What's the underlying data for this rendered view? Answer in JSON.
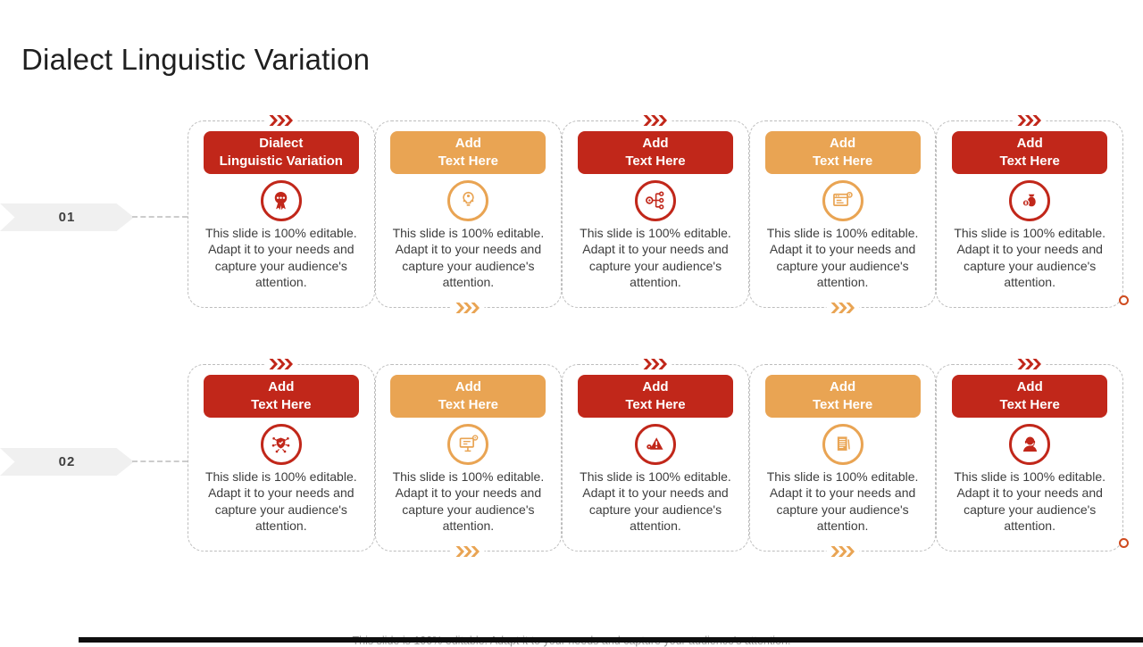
{
  "page": {
    "title": "Dialect Linguistic Variation",
    "footer": "This slide is 100% editable. Adapt it to your needs and capture your audience's attention."
  },
  "colors": {
    "red": "#c1271a",
    "orange": "#e9a453",
    "arrow_bg": "#f0f0f0",
    "end_dot": "#cf4a1e"
  },
  "card_body": "This slide is 100% editable. Adapt it to your needs and capture your audience's attention.",
  "rows": [
    {
      "label": "01",
      "cards": [
        {
          "header_line1": "Dialect",
          "header_line2": "Linguistic Variation",
          "color": "red",
          "icon": "award-ribbon-icon"
        },
        {
          "header_line1": "Add",
          "header_line2": "Text Here",
          "color": "orange",
          "icon": "idea-bulb-icon"
        },
        {
          "header_line1": "Add",
          "header_line2": "Text Here",
          "color": "red",
          "icon": "hierarchy-icon"
        },
        {
          "header_line1": "Add",
          "header_line2": "Text Here",
          "color": "orange",
          "icon": "webpage-gear-icon"
        },
        {
          "header_line1": "Add",
          "header_line2": "Text Here",
          "color": "red",
          "icon": "finance-person-icon"
        }
      ]
    },
    {
      "label": "02",
      "cards": [
        {
          "header_line1": "Add",
          "header_line2": "Text Here",
          "color": "red",
          "icon": "shield-network-icon"
        },
        {
          "header_line1": "Add",
          "header_line2": "Text Here",
          "color": "orange",
          "icon": "monitor-gear-icon"
        },
        {
          "header_line1": "Add",
          "header_line2": "Text Here",
          "color": "red",
          "icon": "warning-gear-icon"
        },
        {
          "header_line1": "Add",
          "header_line2": "Text Here",
          "color": "orange",
          "icon": "document-icon"
        },
        {
          "header_line1": "Add",
          "header_line2": "Text Here",
          "color": "red",
          "icon": "support-agent-icon"
        }
      ]
    }
  ]
}
